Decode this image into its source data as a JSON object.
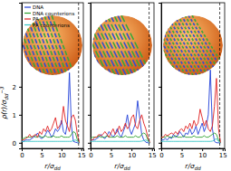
{
  "chart_data": [
    {
      "type": "line",
      "ylabel": {
        "base": "ρ(r)/σ",
        "sub": "dd",
        "sup": "−3"
      },
      "xlabel": {
        "base": "r/σ",
        "sub": "dd"
      },
      "x": [
        0,
        0.5,
        1,
        1.5,
        2,
        2.5,
        3,
        3.5,
        4,
        4.5,
        5,
        5.5,
        6,
        6.5,
        7,
        7.5,
        8,
        8.5,
        9,
        9.5,
        10,
        10.5,
        11,
        11.5,
        12,
        12.5,
        13,
        13.5,
        14,
        14.5,
        15
      ],
      "xlim": [
        0,
        15.5
      ],
      "xticks": [
        0,
        5,
        10,
        15
      ],
      "ylim": [
        -0.2,
        5
      ],
      "yticks": [
        0,
        1,
        2
      ],
      "boundary_x": 14.3,
      "legend": "upper left",
      "series": [
        {
          "name": "DNA",
          "color": "#2040d8",
          "values": [
            0.05,
            0.05,
            0.1,
            0.1,
            0.1,
            0.15,
            0.2,
            0.25,
            0.35,
            0.2,
            0.15,
            0.2,
            0.3,
            0.45,
            0.35,
            0.2,
            0.3,
            0.5,
            0.4,
            0.5,
            0.8,
            0.4,
            0.3,
            0.7,
            2.5,
            0.6,
            0.05,
            0.02,
            0.0,
            0.0,
            null
          ]
        },
        {
          "name": "DNA counterions",
          "color": "#2ca02c",
          "values": [
            0.15,
            0.15,
            0.2,
            0.2,
            0.2,
            0.2,
            0.25,
            0.2,
            0.2,
            0.25,
            0.2,
            0.2,
            0.25,
            0.2,
            0.2,
            0.2,
            0.25,
            0.2,
            0.2,
            0.2,
            0.25,
            0.2,
            0.2,
            0.2,
            0.2,
            0.3,
            0.4,
            0.35,
            0.1,
            0.0,
            null
          ]
        },
        {
          "name": "PA",
          "color": "#e02020",
          "values": [
            0.1,
            0.1,
            0.15,
            0.2,
            0.3,
            0.2,
            0.25,
            0.3,
            0.2,
            0.4,
            0.3,
            0.5,
            0.4,
            0.6,
            0.4,
            0.5,
            0.7,
            0.9,
            0.5,
            0.6,
            0.7,
            1.3,
            0.8,
            0.6,
            0.4,
            0.9,
            1.0,
            0.8,
            0.3,
            0.0,
            null
          ]
        },
        {
          "name": "PA counterions",
          "color": "#33c4c4",
          "values": [
            0.05,
            0.05,
            0.05,
            0.05,
            0.05,
            0.05,
            0.05,
            0.05,
            0.05,
            0.05,
            0.05,
            0.05,
            0.05,
            0.05,
            0.05,
            0.05,
            0.05,
            0.05,
            0.05,
            0.05,
            0.05,
            0.05,
            0.05,
            0.05,
            0.05,
            0.05,
            0.08,
            0.1,
            0.05,
            0.0,
            null
          ]
        }
      ]
    },
    {
      "type": "line",
      "xlabel": {
        "base": "r/σ",
        "sub": "dd"
      },
      "x": [
        0,
        0.5,
        1,
        1.5,
        2,
        2.5,
        3,
        3.5,
        4,
        4.5,
        5,
        5.5,
        6,
        6.5,
        7,
        7.5,
        8,
        8.5,
        9,
        9.5,
        10,
        10.5,
        11,
        11.5,
        12,
        12.5,
        13,
        13.5,
        14,
        14.5,
        15
      ],
      "xlim": [
        0,
        15.5
      ],
      "xticks": [
        0,
        5,
        10,
        15
      ],
      "ylim": [
        -0.2,
        5
      ],
      "yticks": [
        0,
        1,
        2
      ],
      "tick_labels": "x",
      "boundary_x": 14.3,
      "series": [
        {
          "name": "DNA",
          "color": "#2040d8",
          "values": [
            0.1,
            0.1,
            0.1,
            0.15,
            0.2,
            0.3,
            0.2,
            0.15,
            0.25,
            0.4,
            0.3,
            0.2,
            0.3,
            0.5,
            0.3,
            0.2,
            0.4,
            0.6,
            1.0,
            0.5,
            0.3,
            0.5,
            0.7,
            1.5,
            0.9,
            0.3,
            0.1,
            0.02,
            0.0,
            0.0,
            null
          ]
        },
        {
          "name": "DNA counterions",
          "color": "#2ca02c",
          "values": [
            0.15,
            0.2,
            0.2,
            0.2,
            0.25,
            0.2,
            0.2,
            0.2,
            0.25,
            0.2,
            0.2,
            0.2,
            0.2,
            0.25,
            0.2,
            0.2,
            0.2,
            0.25,
            0.2,
            0.2,
            0.2,
            0.2,
            0.25,
            0.2,
            0.2,
            0.3,
            0.35,
            0.3,
            0.1,
            0.0,
            null
          ]
        },
        {
          "name": "PA",
          "color": "#e02020",
          "values": [
            0.1,
            0.1,
            0.2,
            0.2,
            0.3,
            0.25,
            0.3,
            0.4,
            0.3,
            0.2,
            0.35,
            0.5,
            0.3,
            0.4,
            0.6,
            0.4,
            0.5,
            0.7,
            0.5,
            0.6,
            0.9,
            1.0,
            0.6,
            0.5,
            0.8,
            1.0,
            0.7,
            0.5,
            0.2,
            0.0,
            null
          ]
        },
        {
          "name": "PA counterions",
          "color": "#33c4c4",
          "values": [
            0.05,
            0.05,
            0.05,
            0.05,
            0.05,
            0.05,
            0.05,
            0.05,
            0.05,
            0.05,
            0.05,
            0.05,
            0.05,
            0.05,
            0.05,
            0.05,
            0.05,
            0.05,
            0.05,
            0.05,
            0.05,
            0.05,
            0.05,
            0.05,
            0.05,
            0.06,
            0.08,
            0.1,
            0.05,
            0.0,
            null
          ]
        }
      ]
    },
    {
      "type": "line",
      "xlabel": {
        "base": "r/σ",
        "sub": "dd"
      },
      "x": [
        0,
        0.5,
        1,
        1.5,
        2,
        2.5,
        3,
        3.5,
        4,
        4.5,
        5,
        5.5,
        6,
        6.5,
        7,
        7.5,
        8,
        8.5,
        9,
        9.5,
        10,
        10.5,
        11,
        11.5,
        12,
        12.5,
        13,
        13.5,
        14,
        14.5,
        15
      ],
      "xlim": [
        0,
        15.5
      ],
      "xticks": [
        0,
        5,
        10,
        15
      ],
      "ylim": [
        -0.2,
        5
      ],
      "yticks": [
        0,
        1,
        2
      ],
      "tick_labels": "x",
      "boundary_x": 14.3,
      "series": [
        {
          "name": "DNA",
          "color": "#2040d8",
          "values": [
            0.1,
            0.1,
            0.15,
            0.1,
            0.2,
            0.15,
            0.3,
            0.2,
            0.25,
            0.4,
            0.3,
            0.2,
            0.35,
            0.3,
            0.5,
            0.3,
            0.4,
            0.6,
            0.3,
            0.5,
            0.7,
            0.4,
            0.6,
            1.0,
            2.6,
            0.5,
            0.05,
            0.0,
            0.0,
            0.0,
            null
          ]
        },
        {
          "name": "DNA counterions",
          "color": "#2ca02c",
          "values": [
            0.2,
            0.2,
            0.2,
            0.25,
            0.2,
            0.2,
            0.2,
            0.25,
            0.2,
            0.2,
            0.2,
            0.25,
            0.2,
            0.2,
            0.2,
            0.2,
            0.25,
            0.2,
            0.2,
            0.2,
            0.2,
            0.25,
            0.2,
            0.2,
            0.25,
            0.3,
            0.35,
            0.3,
            0.1,
            0.0,
            null
          ]
        },
        {
          "name": "PA",
          "color": "#e02020",
          "values": [
            0.2,
            0.2,
            0.3,
            0.25,
            0.3,
            0.35,
            0.3,
            0.4,
            0.3,
            0.45,
            0.5,
            0.4,
            0.6,
            0.5,
            0.7,
            0.5,
            0.8,
            0.6,
            0.7,
            1.2,
            0.9,
            0.6,
            0.8,
            0.5,
            0.4,
            0.6,
            1.3,
            2.3,
            0.5,
            0.0,
            null
          ]
        },
        {
          "name": "PA counterions",
          "color": "#33c4c4",
          "values": [
            0.05,
            0.05,
            0.05,
            0.05,
            0.05,
            0.05,
            0.05,
            0.05,
            0.05,
            0.05,
            0.05,
            0.05,
            0.05,
            0.05,
            0.05,
            0.05,
            0.05,
            0.05,
            0.05,
            0.05,
            0.05,
            0.05,
            0.05,
            0.05,
            0.05,
            0.06,
            0.1,
            0.15,
            0.05,
            0.0,
            null
          ]
        }
      ]
    }
  ]
}
